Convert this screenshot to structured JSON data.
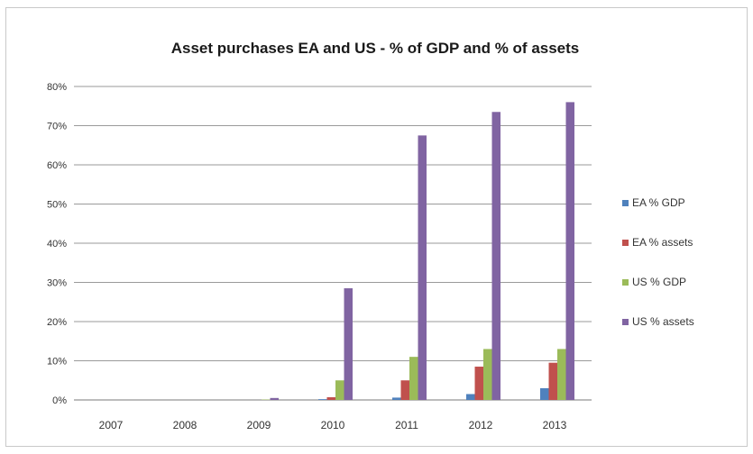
{
  "chart_data": {
    "type": "bar",
    "title": "Asset purchases EA and US -  % of GDP and % of assets",
    "categories": [
      "2007",
      "2008",
      "2009",
      "2010",
      "2011",
      "2012",
      "2013"
    ],
    "ylim": [
      0,
      80
    ],
    "y_ticks": [
      0,
      10,
      20,
      30,
      40,
      50,
      60,
      70,
      80
    ],
    "y_tick_labels": [
      "0%",
      "10%",
      "20%",
      "30%",
      "40%",
      "50%",
      "60%",
      "70%",
      "80%"
    ],
    "grid": true,
    "legend_position": "right",
    "series": [
      {
        "name": "EA % GDP",
        "color": "#4f81bd",
        "values": [
          0,
          0,
          0,
          0.2,
          0.6,
          1.5,
          3
        ]
      },
      {
        "name": "EA % assets",
        "color": "#c0504d",
        "values": [
          0,
          0,
          0,
          0.7,
          5,
          8.5,
          9.5
        ]
      },
      {
        "name": "US % GDP",
        "color": "#9bbb59",
        "values": [
          0,
          0,
          0.1,
          5,
          11,
          13,
          13
        ]
      },
      {
        "name": "US % assets",
        "color": "#8064a2",
        "values": [
          0,
          0,
          0.5,
          28.5,
          67.5,
          73.5,
          76
        ]
      }
    ]
  }
}
